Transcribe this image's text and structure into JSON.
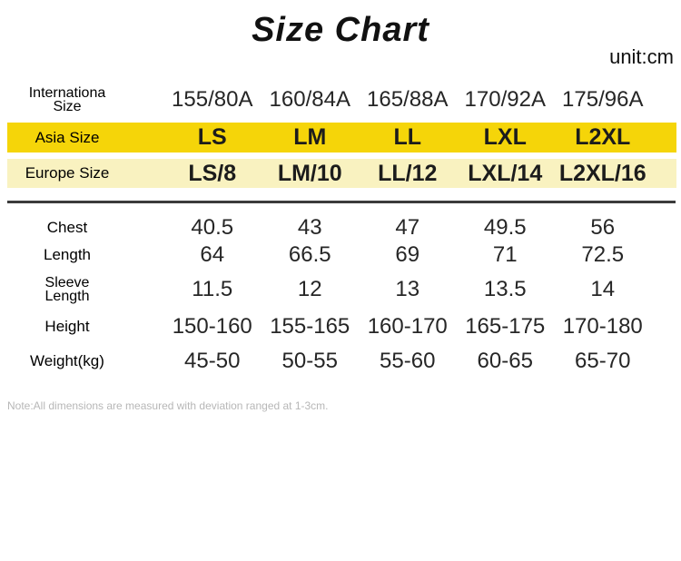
{
  "header": {
    "title": "Size Chart",
    "unit_label": "unit:cm"
  },
  "colors": {
    "asia_band_bg": "#F5D509",
    "europe_band_bg": "#F9F2C0",
    "divider": "#3B3B3B",
    "note_text": "#B7B7B7"
  },
  "note": "Note:All dimensions are measured with deviation ranged at 1-3cm.",
  "chart_data": {
    "type": "table",
    "title": "Size Chart",
    "unit": "cm",
    "columns": [
      "155/80A",
      "160/84A",
      "165/88A",
      "170/92A",
      "175/96A"
    ],
    "rows": [
      {
        "name": "international-size",
        "label_line1": "Internationa",
        "label_line2": "Size",
        "values": [
          "155/80A",
          "160/84A",
          "165/88A",
          "170/92A",
          "175/96A"
        ]
      },
      {
        "name": "asia-size",
        "label": "Asia Size",
        "values": [
          "LS",
          "LM",
          "LL",
          "LXL",
          "L2XL"
        ]
      },
      {
        "name": "europe-size",
        "label": "Europe Size",
        "values": [
          "LS/8",
          "LM/10",
          "LL/12",
          "LXL/14",
          "L2XL/16"
        ]
      },
      {
        "name": "chest",
        "label": "Chest",
        "values": [
          "40.5",
          "43",
          "47",
          "49.5",
          "56"
        ]
      },
      {
        "name": "length",
        "label": "Length",
        "values": [
          "64",
          "66.5",
          "69",
          "71",
          "72.5"
        ]
      },
      {
        "name": "sleeve-length",
        "label_line1": "Sleeve",
        "label_line2": "Length",
        "values": [
          "11.5",
          "12",
          "13",
          "13.5",
          "14"
        ]
      },
      {
        "name": "height",
        "label": "Height",
        "values": [
          "150-160",
          "155-165",
          "160-170",
          "165-175",
          "170-180"
        ]
      },
      {
        "name": "weight-kg",
        "label": "Weight(kg)",
        "values": [
          "45-50",
          "50-55",
          "55-60",
          "60-65",
          "65-70"
        ]
      }
    ],
    "note": "Note:All dimensions are measured with deviation ranged at 1-3cm."
  }
}
